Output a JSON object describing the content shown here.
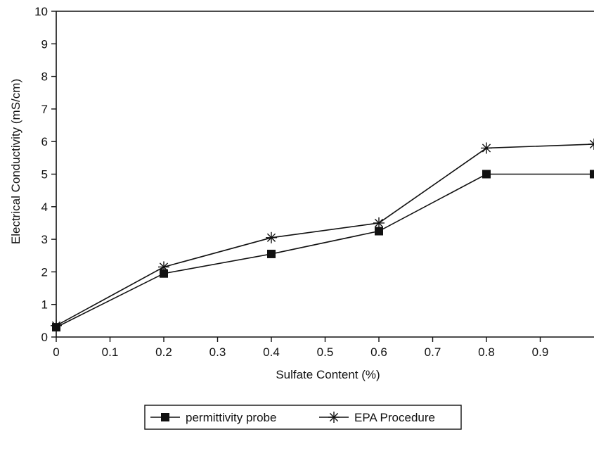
{
  "chart_data": {
    "type": "line",
    "title": "",
    "xlabel": "Sulfate Content (%)",
    "ylabel": "Electrical Conductivity (mS/cm)",
    "xlim": [
      0,
      1.0
    ],
    "ylim": [
      0,
      10
    ],
    "x_ticks": [
      "0",
      "0.1",
      "0.2",
      "0.3",
      "0.4",
      "0.5",
      "0.6",
      "0.7",
      "0.8",
      "0.9"
    ],
    "y_ticks": [
      "0",
      "1",
      "2",
      "3",
      "4",
      "5",
      "6",
      "7",
      "8",
      "9",
      "10"
    ],
    "grid": false,
    "legend_position": "bottom",
    "series": [
      {
        "name": "permittivity probe",
        "marker": "filled-square",
        "x": [
          0,
          0.2,
          0.4,
          0.6,
          0.8,
          1.0
        ],
        "y": [
          0.3,
          1.95,
          2.55,
          3.25,
          5.0,
          5.0
        ]
      },
      {
        "name": "EPA Procedure",
        "marker": "asterisk",
        "x": [
          0,
          0.2,
          0.4,
          0.6,
          0.8,
          1.0
        ],
        "y": [
          0.35,
          2.15,
          3.05,
          3.5,
          5.8,
          5.92
        ]
      }
    ]
  }
}
